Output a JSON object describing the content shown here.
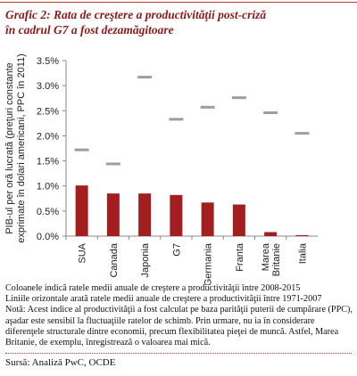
{
  "chart_data": {
    "type": "bar",
    "title": [
      "Grafic 2: Rata de creştere a productivităţii post-criză",
      "în cadrul G7 a fost dezamăgitoare"
    ],
    "y_label": [
      "PIB-ul per oră lucrată (preţuri constante",
      "exprimate în dolari americani, PPC în 2011)"
    ],
    "categories": [
      "SUA",
      "Canada",
      "Japonia",
      "G7",
      "Germania",
      "Franta",
      "Marea Britanie",
      "Italia"
    ],
    "series": [
      {
        "mark": "bar",
        "color": "#a31f1f",
        "values": [
          1.01,
          0.85,
          0.85,
          0.82,
          0.67,
          0.63,
          0.08,
          0.02
        ]
      },
      {
        "mark": "dash",
        "color": "#9e9e9e",
        "values": [
          1.72,
          1.44,
          3.17,
          2.33,
          2.57,
          2.76,
          2.46,
          2.05
        ]
      }
    ],
    "ylim": [
      0,
      3.5
    ],
    "yticks": [
      {
        "value": 0,
        "label": "0.0%"
      },
      {
        "value": 0.5,
        "label": "0.5%"
      },
      {
        "value": 1,
        "label": "1.0%"
      },
      {
        "value": 1.5,
        "label": "1.5%"
      },
      {
        "value": 2,
        "label": "2.0%"
      },
      {
        "value": 2.5,
        "label": "2.5%"
      },
      {
        "value": 3,
        "label": "3.0%"
      },
      {
        "value": 3.5,
        "label": "3.5%"
      }
    ],
    "grid": false,
    "notes": [
      "Coloanele indică ratele medii anuale de creştere a productivităţii între 2008-2015",
      "Liniile orizontale arată ratele medii anuale de creştere a productivităţii între 1971-2007",
      "Notă: Acest indice al productivităţii a fost calculat pe baza parităţii puterii de cumpărare (PPC), aşadar este sensibil la fluctuaţiile ratelor de schimb. Prin urmare, nu ia în considerare diferenţele structurale dintre economii, precum flexibilitatea pieţei de muncă. Astfel, Marea Britanie, de exemplu, înregistrează o valoarea mai mică."
    ],
    "source": "Sursă: Analiză PwC, OCDE"
  }
}
